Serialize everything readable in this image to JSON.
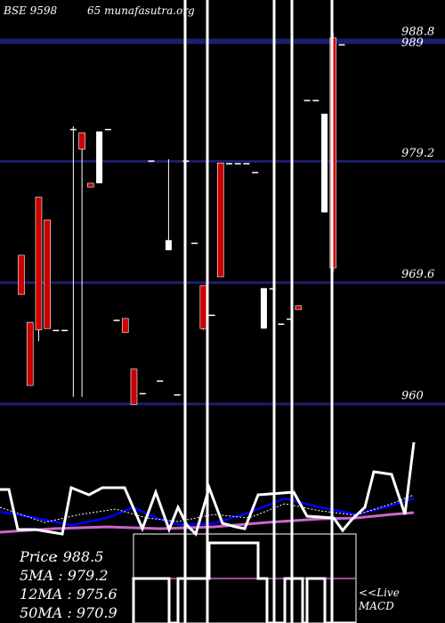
{
  "header": {
    "symbol_text": "BSE 9598",
    "site_text": "65 munafasutra.org"
  },
  "price_levels": [
    {
      "value": 988.8,
      "label": "988.8"
    },
    {
      "value": 979.2,
      "label": "979.2"
    },
    {
      "value": 969.6,
      "label": "969.6"
    },
    {
      "value": 960,
      "label": "960"
    }
  ],
  "price_top_label": "989",
  "stats": [
    {
      "label": "Price",
      "value": "988.5"
    },
    {
      "label": "5MA",
      "value": "979.2"
    },
    {
      "label": "12MA",
      "value": "975.6"
    },
    {
      "label": "50MA",
      "value": "970.9"
    }
  ],
  "macd_label": {
    "line1": "<<Live",
    "line2": "MACD"
  },
  "colors": {
    "background": "#000000",
    "grid": "#1e1e6e",
    "up_candle": "#ffffff",
    "down_candle": "#cc0000",
    "line": "#ffffff",
    "ma_short": "#0000ff",
    "ma_long": "#cc66cc"
  },
  "chart_data": {
    "type": "candlestick",
    "y_range": [
      952,
      992
    ],
    "candles": [
      {
        "o": 971.8,
        "h": 971.8,
        "l": 968.7,
        "c": 968.7
      },
      {
        "o": 966.5,
        "h": 966.5,
        "l": 961.5,
        "c": 961.5
      },
      {
        "o": 976.4,
        "h": 976.4,
        "l": 965.0,
        "c": 965.9
      },
      {
        "o": 974.6,
        "h": 974.6,
        "l": 966.0,
        "c": 966.0
      },
      {
        "o": 965.9,
        "h": 965.9,
        "l": 965.9,
        "c": 965.9
      },
      {
        "o": 965.9,
        "h": 965.9,
        "l": 965.9,
        "c": 965.9
      },
      {
        "o": 981.8,
        "h": 982.0,
        "l": 960.6,
        "c": 981.8
      },
      {
        "o": 981.5,
        "h": 981.5,
        "l": 960.6,
        "c": 980.2
      },
      {
        "o": 977.5,
        "h": 977.5,
        "l": 977.5,
        "c": 977.2
      },
      {
        "o": 977.5,
        "h": 981.6,
        "l": 977.5,
        "c": 981.6
      },
      {
        "o": 981.8,
        "h": 981.8,
        "l": 981.8,
        "c": 981.8
      },
      {
        "o": 966.7,
        "h": 966.7,
        "l": 966.7,
        "c": 966.7
      },
      {
        "o": 966.8,
        "h": 966.8,
        "l": 965.7,
        "c": 965.7
      },
      {
        "o": 962.8,
        "h": 962.8,
        "l": 960.0,
        "c": 960.0
      },
      {
        "o": 960.9,
        "h": 960.9,
        "l": 960.9,
        "c": 960.9
      },
      {
        "o": 979.3,
        "h": 979.3,
        "l": 979.3,
        "c": 979.3
      },
      {
        "o": 961.9,
        "h": 961.9,
        "l": 961.9,
        "c": 961.9
      },
      {
        "o": 972.2,
        "h": 979.4,
        "l": 972.2,
        "c": 973.0
      },
      {
        "o": 960.8,
        "h": 960.8,
        "l": 960.8,
        "c": 960.8
      },
      {
        "o": 979.3,
        "h": 979.3,
        "l": 979.3,
        "c": 979.3
      },
      {
        "o": 972.8,
        "h": 972.8,
        "l": 972.8,
        "c": 972.8
      },
      {
        "o": 969.4,
        "h": 969.4,
        "l": 965.9,
        "c": 966.0
      },
      {
        "o": 967.1,
        "h": 967.1,
        "l": 967.1,
        "c": 967.1
      },
      {
        "o": 979.1,
        "h": 979.1,
        "l": 970.1,
        "c": 970.1
      },
      {
        "o": 979.1,
        "h": 979.1,
        "l": 979.1,
        "c": 979.1
      },
      {
        "o": 979.1,
        "h": 979.1,
        "l": 979.1,
        "c": 979.1
      },
      {
        "o": 979.1,
        "h": 979.1,
        "l": 979.1,
        "c": 979.1
      },
      {
        "o": 978.4,
        "h": 978.4,
        "l": 978.4,
        "c": 978.4
      },
      {
        "o": 966.0,
        "h": 969.2,
        "l": 966.0,
        "c": 969.2
      },
      {
        "o": 969.2,
        "h": 969.2,
        "l": 969.2,
        "c": 969.2
      },
      {
        "o": 966.4,
        "h": 966.4,
        "l": 966.4,
        "c": 966.4
      },
      {
        "o": 966.8,
        "h": 966.8,
        "l": 966.8,
        "c": 966.8
      },
      {
        "o": 967.8,
        "h": 967.8,
        "l": 967.5,
        "c": 967.5
      },
      {
        "o": 984.1,
        "h": 984.1,
        "l": 984.1,
        "c": 984.1
      },
      {
        "o": 984.1,
        "h": 984.1,
        "l": 984.1,
        "c": 984.1
      },
      {
        "o": 975.2,
        "h": 983.0,
        "l": 975.2,
        "c": 983.0
      },
      {
        "o": 989.0,
        "h": 989.4,
        "l": 970.5,
        "c": 970.8
      },
      {
        "o": 988.5,
        "h": 988.5,
        "l": 988.5,
        "c": 988.5
      }
    ]
  }
}
